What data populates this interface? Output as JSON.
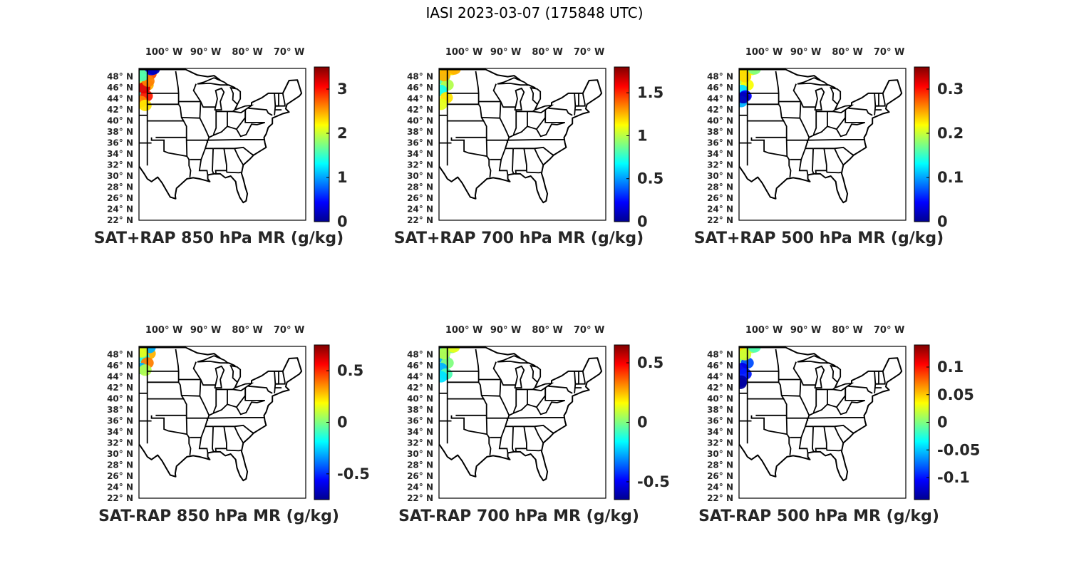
{
  "title": "IASI 2023-03-07 (175848 UTC)",
  "map": {
    "lon_ticks": [
      "100° W",
      "90° W",
      "80° W",
      "70° W"
    ],
    "lat_ticks": [
      "48° N",
      "46° N",
      "44° N",
      "42° N",
      "40° N",
      "38° N",
      "36° N",
      "34° N",
      "32° N",
      "30° N",
      "28° N",
      "26° N",
      "24° N",
      "22° N"
    ],
    "colormap": "jet"
  },
  "panels": [
    {
      "label": "SAT+RAP 850 hPa MR (g/kg)",
      "cbar_range": [
        0,
        3.5
      ],
      "cbar_ticks": [
        "0",
        "1",
        "2",
        "3"
      ],
      "cbar_values": [
        0,
        1,
        2,
        3
      ]
    },
    {
      "label": "SAT+RAP 700 hPa MR (g/kg)",
      "cbar_range": [
        0,
        1.8
      ],
      "cbar_ticks": [
        "0",
        "0.5",
        "1",
        "1.5"
      ],
      "cbar_values": [
        0,
        0.5,
        1,
        1.5
      ]
    },
    {
      "label": "SAT+RAP 500 hPa MR (g/kg)",
      "cbar_range": [
        0,
        0.35
      ],
      "cbar_ticks": [
        "0",
        "0.1",
        "0.2",
        "0.3"
      ],
      "cbar_values": [
        0,
        0.1,
        0.2,
        0.3
      ]
    },
    {
      "label": "SAT-RAP 850 hPa MR (g/kg)",
      "cbar_range": [
        -0.75,
        0.75
      ],
      "cbar_ticks": [
        "-0.5",
        "0",
        "0.5"
      ],
      "cbar_values": [
        -0.5,
        0,
        0.5
      ]
    },
    {
      "label": "SAT-RAP 700 hPa MR (g/kg)",
      "cbar_range": [
        -0.65,
        0.65
      ],
      "cbar_ticks": [
        "-0.5",
        "0",
        "0.5"
      ],
      "cbar_values": [
        -0.5,
        0,
        0.5
      ]
    },
    {
      "label": "SAT-RAP 500 hPa MR (g/kg)",
      "cbar_range": [
        -0.14,
        0.14
      ],
      "cbar_ticks": [
        "-0.1",
        "-0.05",
        "0",
        "0.05",
        "0.1"
      ],
      "cbar_values": [
        -0.1,
        -0.05,
        0,
        0.05,
        0.1
      ]
    }
  ]
}
